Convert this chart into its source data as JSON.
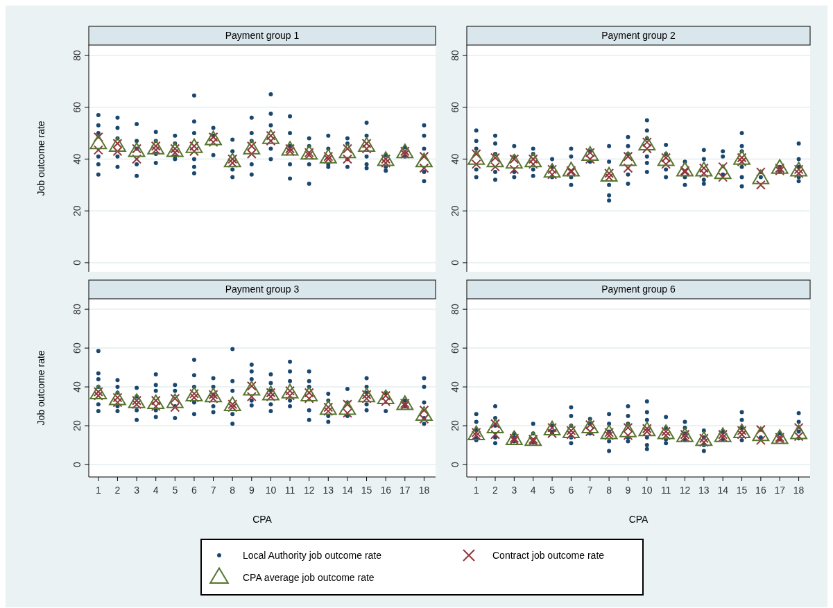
{
  "chart_data": [
    {
      "type": "scatter",
      "title": "Payment group 1",
      "ylabel": "Job outcome rate",
      "xlim": [
        0.5,
        18.6
      ],
      "ylim": [
        -3.5,
        84
      ],
      "yticks": [
        0,
        20,
        40,
        60,
        80
      ],
      "grid": "y",
      "tick_labels": "y",
      "legend": "bottom",
      "series": [
        {
          "name": "Local Authority job outcome rate",
          "color": "#1a476f",
          "marker": "circle",
          "x": [
            1,
            1,
            1,
            1,
            1,
            1,
            2,
            2,
            2,
            2,
            2,
            3,
            3,
            3,
            3,
            3,
            4,
            4,
            4,
            4,
            5,
            5,
            5,
            5,
            6,
            6,
            6,
            6,
            6,
            6,
            7,
            7,
            7,
            8,
            8,
            8,
            8,
            9,
            9,
            9,
            9,
            9,
            10,
            10,
            10,
            10,
            10,
            11,
            11,
            11,
            11,
            11,
            12,
            12,
            12,
            12,
            13,
            13,
            13,
            13,
            14,
            14,
            14,
            14,
            15,
            15,
            15,
            15,
            15,
            16,
            16,
            16,
            17,
            17,
            18,
            18,
            18,
            18,
            18
          ],
          "values": [
            57,
            53,
            50,
            41,
            38,
            34,
            56,
            52,
            48,
            41,
            37,
            53.5,
            47,
            44,
            38,
            33.5,
            50.5,
            47,
            42,
            38.5,
            49,
            46,
            41,
            40,
            64.5,
            54.5,
            50,
            40,
            37,
            34.5,
            52,
            49,
            41.5,
            47.5,
            43,
            36,
            33,
            56,
            50,
            47,
            38,
            34,
            65,
            57.5,
            53,
            44,
            40,
            56.5,
            50,
            45,
            38,
            32.5,
            48,
            45,
            38,
            30.5,
            49,
            44,
            38,
            37,
            48,
            46,
            40,
            37,
            54,
            49,
            41,
            38,
            36.5,
            41.5,
            37,
            35.5,
            44.5,
            41,
            53,
            49,
            44,
            35,
            31.5
          ]
        },
        {
          "name": "Contract job outcome rate",
          "color": "#90353b",
          "marker": "cross",
          "x": [
            1,
            1,
            2,
            2,
            3,
            3,
            4,
            4,
            5,
            5,
            6,
            6,
            7,
            7,
            8,
            8,
            9,
            9,
            10,
            10,
            11,
            11,
            12,
            12,
            13,
            13,
            14,
            14,
            15,
            15,
            16,
            16,
            17,
            17,
            18,
            18
          ],
          "values": [
            48.5,
            43.5,
            46,
            43,
            44,
            40,
            45,
            43.5,
            44,
            42.5,
            45,
            43,
            48.5,
            46.5,
            40,
            38.5,
            45,
            42,
            49,
            47,
            44,
            43,
            42.5,
            41.5,
            41,
            40,
            44,
            40,
            46,
            44,
            40,
            38.5,
            43,
            42,
            41,
            36.5
          ]
        },
        {
          "name": "CPA average job outcome rate",
          "color": "#55752f",
          "marker": "triangle",
          "x": [
            1,
            2,
            3,
            4,
            5,
            6,
            7,
            8,
            9,
            10,
            11,
            12,
            13,
            14,
            15,
            16,
            17,
            18
          ],
          "values": [
            46,
            45,
            43,
            44,
            43,
            44.5,
            47.5,
            39,
            44,
            48,
            43.5,
            42,
            40.5,
            42.5,
            45,
            39.5,
            42.5,
            39
          ]
        }
      ]
    },
    {
      "type": "scatter",
      "title": "Payment group 2",
      "xlim": [
        0.5,
        18.6
      ],
      "ylim": [
        -3.5,
        84
      ],
      "yticks": [
        0,
        20,
        40,
        60,
        80
      ],
      "grid": "y",
      "tick_labels": "y",
      "series": [
        {
          "color": "#1a476f",
          "marker": "circle",
          "x": [
            1,
            1,
            1,
            1,
            1,
            2,
            2,
            2,
            2,
            2,
            3,
            3,
            3,
            3,
            4,
            4,
            4,
            4,
            5,
            5,
            5,
            6,
            6,
            6,
            6,
            7,
            7,
            8,
            8,
            8,
            8,
            8,
            9,
            9,
            9,
            9,
            9,
            10,
            10,
            10,
            10,
            10,
            10,
            11,
            11,
            11,
            11,
            12,
            12,
            12,
            13,
            13,
            13,
            13,
            14,
            14,
            14,
            15,
            15,
            15,
            15,
            15,
            15,
            16,
            16,
            17,
            17,
            18,
            18,
            18,
            18,
            18
          ],
          "values": [
            51,
            47,
            44,
            36,
            33,
            49,
            46,
            42,
            35,
            32,
            45,
            41,
            35,
            33,
            44,
            42,
            36,
            33.5,
            40,
            37,
            33,
            44,
            41,
            33,
            30,
            43,
            39,
            45,
            39,
            30,
            26,
            24,
            48.5,
            45,
            42,
            34,
            30.5,
            55,
            51,
            48,
            41,
            38.5,
            35,
            45.5,
            42,
            36,
            33,
            39,
            33,
            30,
            43.5,
            40,
            32,
            30.5,
            43,
            41,
            34,
            50,
            45,
            43,
            37,
            33,
            29.5,
            35,
            33,
            37,
            35,
            46,
            40,
            37,
            33,
            31.5
          ]
        },
        {
          "color": "#90353b",
          "marker": "cross",
          "x": [
            1,
            1,
            2,
            2,
            3,
            3,
            4,
            4,
            5,
            5,
            6,
            6,
            7,
            7,
            8,
            8,
            9,
            9,
            10,
            10,
            11,
            11,
            12,
            12,
            13,
            13,
            14,
            14,
            15,
            15,
            16,
            16,
            17,
            17,
            18,
            18
          ],
          "values": [
            42,
            38,
            40.5,
            37,
            40,
            36,
            40,
            38,
            36,
            34,
            35.5,
            35,
            42.5,
            40,
            34.5,
            33,
            41,
            36.5,
            46.5,
            44,
            40.5,
            38,
            35.5,
            35,
            36.5,
            34.5,
            37,
            33,
            40.5,
            39,
            35,
            30,
            36.5,
            35.5,
            36,
            34.5
          ]
        },
        {
          "color": "#55752f",
          "marker": "triangle",
          "x": [
            1,
            2,
            3,
            4,
            5,
            6,
            7,
            8,
            9,
            10,
            11,
            12,
            13,
            14,
            15,
            16,
            17,
            18
          ],
          "values": [
            40,
            39,
            38.5,
            39,
            35,
            35.5,
            41.5,
            33.5,
            39.5,
            45.5,
            39.5,
            35.5,
            35.5,
            34.5,
            40,
            32.5,
            36.5,
            35.5
          ]
        }
      ]
    },
    {
      "type": "scatter",
      "title": "Payment group 3",
      "xlabel": "CPA",
      "ylabel": "Job outcome rate",
      "xlim": [
        0.5,
        18.6
      ],
      "ylim": [
        -6.4,
        85.4
      ],
      "xticks": [
        1,
        2,
        3,
        4,
        5,
        6,
        7,
        8,
        9,
        10,
        11,
        12,
        13,
        14,
        15,
        16,
        17,
        18
      ],
      "yticks": [
        0,
        20,
        40,
        60,
        80
      ],
      "grid": "y",
      "series": [
        {
          "color": "#1a476f",
          "marker": "circle",
          "x": [
            1,
            1,
            1,
            1,
            1,
            1,
            2,
            2,
            2,
            2,
            2,
            3,
            3,
            3,
            3,
            4,
            4,
            4,
            4,
            4,
            5,
            5,
            5,
            5,
            6,
            6,
            6,
            6,
            6,
            7,
            7,
            7,
            7,
            7,
            8,
            8,
            8,
            8,
            8,
            9,
            9,
            9,
            9,
            9,
            10,
            10,
            10,
            10,
            10,
            11,
            11,
            11,
            11,
            11,
            12,
            12,
            12,
            12,
            12,
            13,
            13,
            13,
            13,
            14,
            14,
            14,
            15,
            15,
            15,
            15,
            15,
            16,
            16,
            17,
            17,
            18,
            18,
            18,
            18,
            18
          ],
          "values": [
            58.5,
            47,
            44,
            40,
            31,
            27.5,
            43.5,
            40,
            37,
            30,
            27.5,
            39.5,
            35,
            28,
            23,
            46.5,
            41,
            38,
            28,
            24.5,
            41,
            38,
            30,
            24,
            54,
            46,
            40,
            32,
            26,
            44.5,
            40,
            36,
            30,
            27,
            59.5,
            43,
            38,
            26,
            21,
            51.5,
            48,
            44,
            33,
            30.5,
            46.5,
            42,
            38,
            31,
            27.5,
            53,
            48,
            43,
            33,
            30,
            48,
            43,
            40,
            28,
            23,
            36.5,
            33,
            25,
            22,
            39,
            32,
            25,
            44.5,
            40,
            37,
            31,
            28,
            37,
            27.5,
            33,
            30,
            44.5,
            40,
            32,
            24,
            21
          ]
        },
        {
          "color": "#90353b",
          "marker": "cross",
          "x": [
            1,
            1,
            2,
            2,
            3,
            3,
            4,
            4,
            5,
            5,
            6,
            6,
            7,
            7,
            8,
            8,
            9,
            9,
            10,
            10,
            11,
            11,
            12,
            12,
            13,
            13,
            14,
            14,
            15,
            15,
            16,
            16,
            17,
            17,
            18,
            18
          ],
          "values": [
            37.5,
            35.5,
            34.5,
            32,
            33,
            31,
            33,
            30,
            34,
            29.5,
            36.5,
            34.5,
            36,
            34,
            31,
            29.5,
            40.5,
            35,
            37,
            35,
            38,
            35.5,
            37,
            34,
            29.5,
            27.5,
            31,
            26.5,
            36,
            34,
            35.5,
            32.5,
            31.5,
            30.5,
            28,
            23.5
          ]
        },
        {
          "color": "#55752f",
          "marker": "triangle",
          "x": [
            1,
            2,
            3,
            4,
            5,
            6,
            7,
            8,
            9,
            10,
            11,
            12,
            13,
            14,
            15,
            16,
            17,
            18
          ],
          "values": [
            36.5,
            33.5,
            32,
            31.5,
            32,
            35.5,
            35,
            30.5,
            38.5,
            36,
            37,
            35.5,
            28.5,
            28.5,
            35,
            34,
            31,
            25.5
          ]
        }
      ]
    },
    {
      "type": "scatter",
      "title": "Payment group 6",
      "xlabel": "CPA",
      "xlim": [
        0.5,
        18.6
      ],
      "ylim": [
        -6.4,
        85.4
      ],
      "xticks": [
        1,
        2,
        3,
        4,
        5,
        6,
        7,
        8,
        9,
        10,
        11,
        12,
        13,
        14,
        15,
        16,
        17,
        18
      ],
      "yticks": [
        0,
        20,
        40,
        60,
        80
      ],
      "grid": "y",
      "series": [
        {
          "color": "#1a476f",
          "marker": "circle",
          "x": [
            1,
            1,
            1,
            1,
            1,
            2,
            2,
            2,
            2,
            2,
            3,
            3,
            3,
            4,
            4,
            4,
            5,
            5,
            5,
            6,
            6,
            6,
            6,
            6,
            7,
            7,
            7,
            8,
            8,
            8,
            8,
            8,
            9,
            9,
            9,
            9,
            9,
            10,
            10,
            10,
            10,
            10,
            10,
            11,
            11,
            11,
            11,
            12,
            12,
            12,
            12,
            13,
            13,
            13,
            13,
            14,
            14,
            15,
            15,
            15,
            15,
            16,
            16,
            17,
            17,
            18,
            18,
            18,
            18
          ],
          "values": [
            26,
            22,
            18,
            13.5,
            12.5,
            30,
            24,
            20,
            14,
            11,
            16,
            14,
            12,
            21,
            16,
            11.5,
            20,
            17,
            16,
            29.5,
            25,
            20,
            14,
            11,
            23.5,
            21,
            16,
            26,
            21,
            17,
            12,
            7,
            30,
            25,
            21,
            14,
            12,
            32.5,
            27,
            23,
            14,
            10,
            8,
            24.5,
            19,
            13,
            11,
            22,
            19,
            16,
            12.5,
            17.5,
            14,
            10,
            7,
            17,
            13,
            27,
            23,
            19,
            12.5,
            18,
            14,
            16,
            13,
            26.5,
            22,
            17,
            13.5
          ]
        },
        {
          "color": "#90353b",
          "marker": "cross",
          "x": [
            1,
            1,
            2,
            2,
            3,
            3,
            4,
            4,
            5,
            5,
            6,
            6,
            7,
            7,
            8,
            8,
            9,
            9,
            10,
            10,
            11,
            11,
            12,
            12,
            13,
            13,
            14,
            14,
            15,
            15,
            16,
            16,
            17,
            17,
            18,
            18
          ],
          "values": [
            16.5,
            15,
            21,
            15.5,
            13.5,
            12.5,
            13,
            12,
            19,
            16,
            17.5,
            15.5,
            20.5,
            17,
            16.5,
            15,
            19,
            15,
            18.5,
            17,
            17,
            15,
            15.5,
            14,
            13.5,
            11.5,
            15.5,
            14,
            17.5,
            15.5,
            18,
            12.5,
            14,
            13,
            19,
            14.5
          ]
        },
        {
          "color": "#55752f",
          "marker": "triangle",
          "x": [
            1,
            2,
            3,
            4,
            5,
            6,
            7,
            8,
            9,
            10,
            11,
            12,
            13,
            14,
            15,
            16,
            17,
            18
          ],
          "values": [
            15.5,
            19,
            13,
            12.5,
            18,
            16.5,
            19,
            16,
            17,
            17.5,
            16,
            14.5,
            12.5,
            14.5,
            16.5,
            15,
            13.5,
            16
          ]
        }
      ]
    }
  ]
}
